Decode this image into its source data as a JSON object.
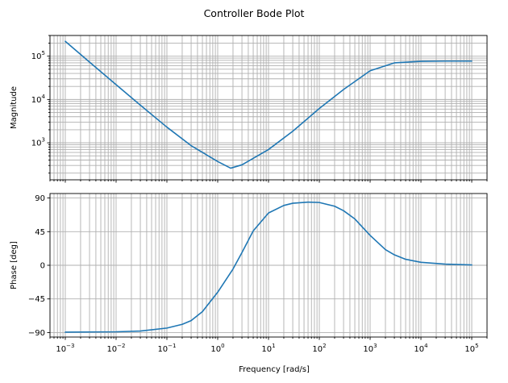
{
  "figure": {
    "title": "Controller Bode Plot",
    "line_color": "#1f77b4",
    "grid_color": "#b0b0b0"
  },
  "chart_data": [
    {
      "type": "line",
      "title": "",
      "xlabel": "",
      "ylabel": "Magnitude",
      "xscale": "log",
      "yscale": "log",
      "xlim": [
        0.0005,
        200000
      ],
      "ylim": [
        140,
        300000
      ],
      "x_tick_labels_shown": false,
      "yticks": [
        {
          "value": 1000,
          "base": "10",
          "exp": "3"
        },
        {
          "value": 10000,
          "base": "10",
          "exp": "4"
        },
        {
          "value": 100000,
          "base": "10",
          "exp": "5"
        }
      ],
      "grid": "both major and minor",
      "series": [
        {
          "x": [
            0.001,
            0.003,
            0.01,
            0.03,
            0.1,
            0.3,
            1,
            1.8,
            3,
            10,
            30,
            100,
            300,
            1000,
            3000,
            10000,
            30000,
            100000
          ],
          "y": [
            220000,
            73000,
            22000,
            7400,
            2300,
            860,
            370,
            260,
            310,
            700,
            1850,
            6200,
            17000,
            46000,
            70000,
            76000,
            77000,
            77000
          ]
        }
      ]
    },
    {
      "type": "line",
      "title": "",
      "xlabel": "Frequency [rad/s]",
      "ylabel": "Phase [deg]",
      "xscale": "log",
      "yscale": "linear",
      "xlim": [
        0.0005,
        200000
      ],
      "ylim": [
        -96,
        96
      ],
      "xticks": [
        {
          "value": 0.001,
          "base": "10",
          "exp": "−3"
        },
        {
          "value": 0.01,
          "base": "10",
          "exp": "−2"
        },
        {
          "value": 0.1,
          "base": "10",
          "exp": "−1"
        },
        {
          "value": 1,
          "base": "10",
          "exp": "0"
        },
        {
          "value": 10,
          "base": "10",
          "exp": "1"
        },
        {
          "value": 100,
          "base": "10",
          "exp": "2"
        },
        {
          "value": 1000,
          "base": "10",
          "exp": "3"
        },
        {
          "value": 10000,
          "base": "10",
          "exp": "4"
        },
        {
          "value": 100000,
          "base": "10",
          "exp": "5"
        }
      ],
      "yticks": [
        {
          "value": -90,
          "label": "−90"
        },
        {
          "value": -45,
          "label": "−45"
        },
        {
          "value": 0,
          "label": "0"
        },
        {
          "value": 45,
          "label": "45"
        },
        {
          "value": 90,
          "label": "90"
        }
      ],
      "grid": "both major and minor",
      "series": [
        {
          "x": [
            0.001,
            0.01,
            0.03,
            0.1,
            0.2,
            0.3,
            0.5,
            1,
            2,
            3,
            5,
            10,
            20,
            30,
            60,
            100,
            200,
            300,
            500,
            1000,
            2000,
            3000,
            5000,
            10000,
            30000,
            100000
          ],
          "y": [
            -89.5,
            -89,
            -88,
            -84,
            -79,
            -74,
            -62,
            -36,
            -5,
            17,
            46,
            70,
            80,
            83,
            84.5,
            84,
            79,
            73,
            62,
            40,
            21,
            14,
            8,
            4,
            1.5,
            0.5
          ]
        }
      ]
    }
  ]
}
